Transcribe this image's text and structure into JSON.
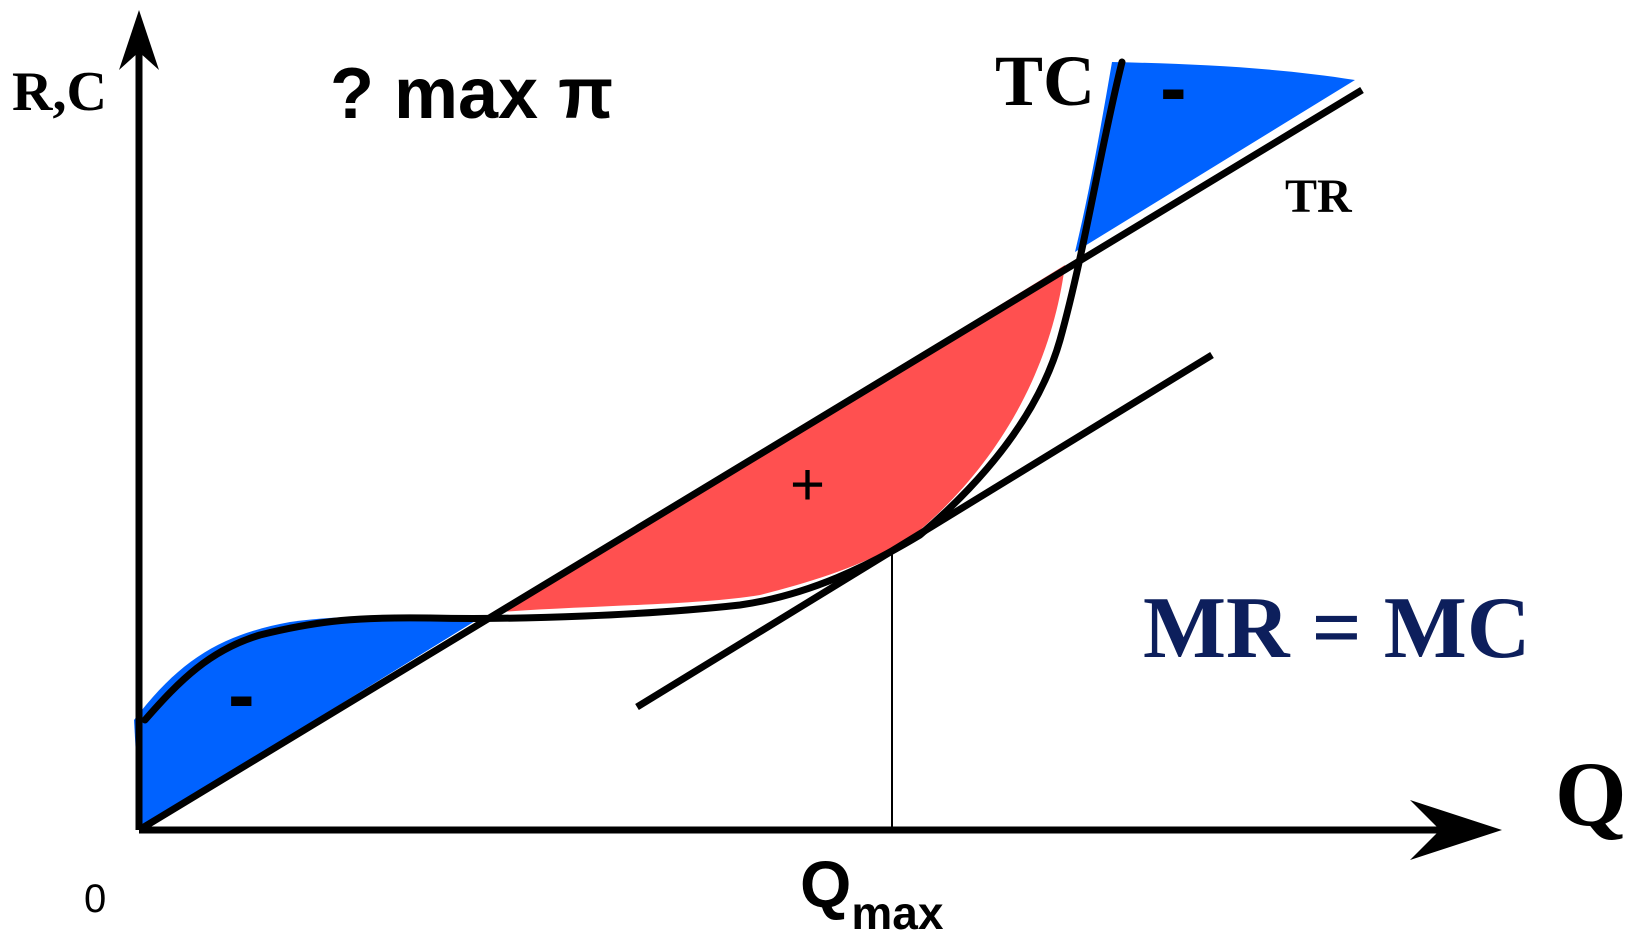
{
  "labels": {
    "y_axis": "R,C",
    "x_axis": "Q",
    "origin": "0",
    "title": "? max π",
    "tc": "TC",
    "tr": "TR",
    "q_max_main": "Q",
    "q_max_sub": "max",
    "condition": "MR = MC",
    "loss_left": "-",
    "loss_right": "-",
    "profit": "+"
  },
  "colors": {
    "loss_fill": "#0062ff",
    "profit_fill": "#ff5050",
    "condition_text": "#0d1f5c",
    "lines": "#000000"
  }
}
